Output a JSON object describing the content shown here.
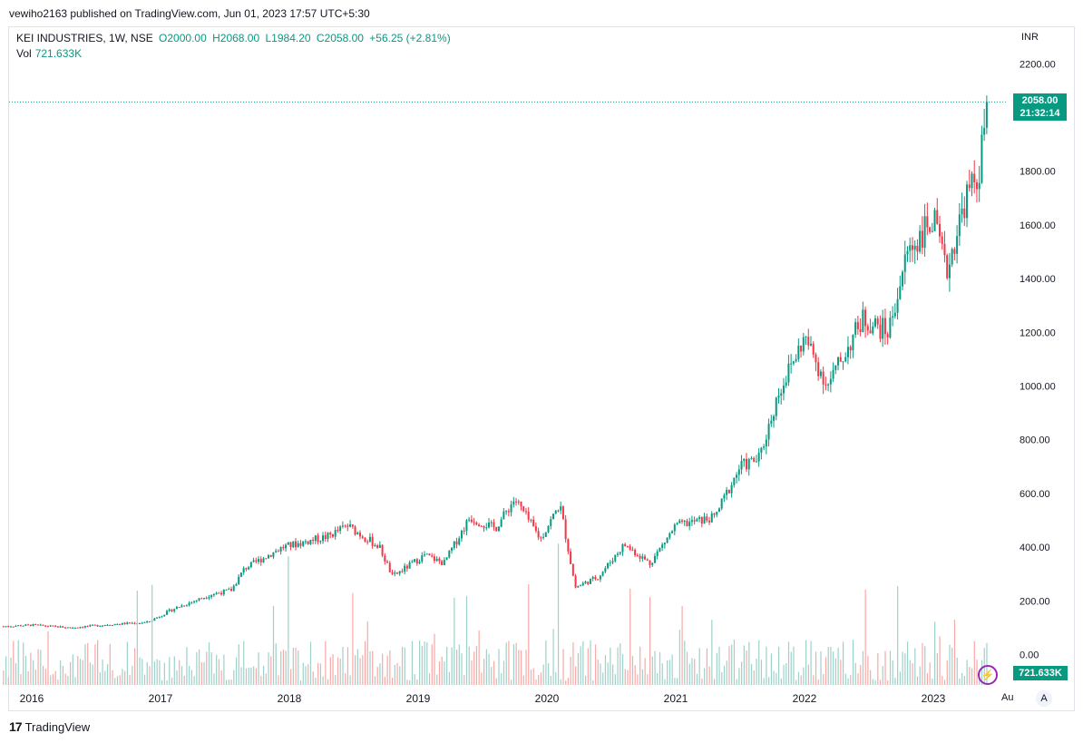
{
  "header": {
    "published": "vewiho2163 published on TradingView.com, Jun 01, 2023 17:57 UTC+5:30"
  },
  "legend": {
    "symbol": "KEI INDUSTRIES, 1W, NSE",
    "open": "O2000.00",
    "high": "H2068.00",
    "low": "L1984.20",
    "close": "C2058.00",
    "change": "+56.25 (+2.81%)",
    "vol_label": "Vol",
    "vol_value": "721.633K"
  },
  "currency": "INR",
  "price_tag": {
    "price": "2058.00",
    "countdown": "21:32:14"
  },
  "vol_tag": "721.633K",
  "auto_label": "Au",
  "a_label": "A",
  "brand": {
    "logo": "17",
    "name": "TradingView"
  },
  "colors": {
    "up": "#089981",
    "down": "#f23645",
    "vol_up": "#9ed1c9",
    "vol_down": "#f7a9a7"
  },
  "chart_data": {
    "type": "candlestick",
    "timeframe": "1W",
    "ylim": [
      0,
      2200
    ],
    "y_ticks": [
      "2200.00",
      "1800.00",
      "1600.00",
      "1400.00",
      "1200.00",
      "1000.00",
      "800.00",
      "600.00",
      "400.00",
      "200.00",
      "0.00"
    ],
    "x_ticks": [
      "2016",
      "2017",
      "2018",
      "2019",
      "2020",
      "2021",
      "2022",
      "2023"
    ],
    "last_close": 2058.0,
    "anchors": [
      {
        "year": 2015.78,
        "price": 105
      },
      {
        "year": 2016.0,
        "price": 110
      },
      {
        "year": 2016.3,
        "price": 100
      },
      {
        "year": 2016.6,
        "price": 112
      },
      {
        "year": 2016.9,
        "price": 120
      },
      {
        "year": 2017.1,
        "price": 170
      },
      {
        "year": 2017.4,
        "price": 225
      },
      {
        "year": 2017.55,
        "price": 240
      },
      {
        "year": 2017.65,
        "price": 320
      },
      {
        "year": 2017.95,
        "price": 400
      },
      {
        "year": 2018.3,
        "price": 440
      },
      {
        "year": 2018.45,
        "price": 480
      },
      {
        "year": 2018.7,
        "price": 400
      },
      {
        "year": 2018.8,
        "price": 290
      },
      {
        "year": 2019.05,
        "price": 370
      },
      {
        "year": 2019.2,
        "price": 340
      },
      {
        "year": 2019.4,
        "price": 510
      },
      {
        "year": 2019.6,
        "price": 470
      },
      {
        "year": 2019.75,
        "price": 580
      },
      {
        "year": 2019.95,
        "price": 430
      },
      {
        "year": 2020.1,
        "price": 560
      },
      {
        "year": 2020.22,
        "price": 250
      },
      {
        "year": 2020.4,
        "price": 290
      },
      {
        "year": 2020.6,
        "price": 410
      },
      {
        "year": 2020.8,
        "price": 340
      },
      {
        "year": 2021.0,
        "price": 480
      },
      {
        "year": 2021.3,
        "price": 510
      },
      {
        "year": 2021.5,
        "price": 700
      },
      {
        "year": 2021.65,
        "price": 730
      },
      {
        "year": 2021.8,
        "price": 980
      },
      {
        "year": 2022.0,
        "price": 1180
      },
      {
        "year": 2022.18,
        "price": 1000
      },
      {
        "year": 2022.45,
        "price": 1250
      },
      {
        "year": 2022.65,
        "price": 1200
      },
      {
        "year": 2022.8,
        "price": 1500
      },
      {
        "year": 2023.0,
        "price": 1620
      },
      {
        "year": 2023.1,
        "price": 1420
      },
      {
        "year": 2023.25,
        "price": 1700
      },
      {
        "year": 2023.35,
        "price": 1780
      },
      {
        "year": 2023.42,
        "price": 2058
      }
    ]
  }
}
